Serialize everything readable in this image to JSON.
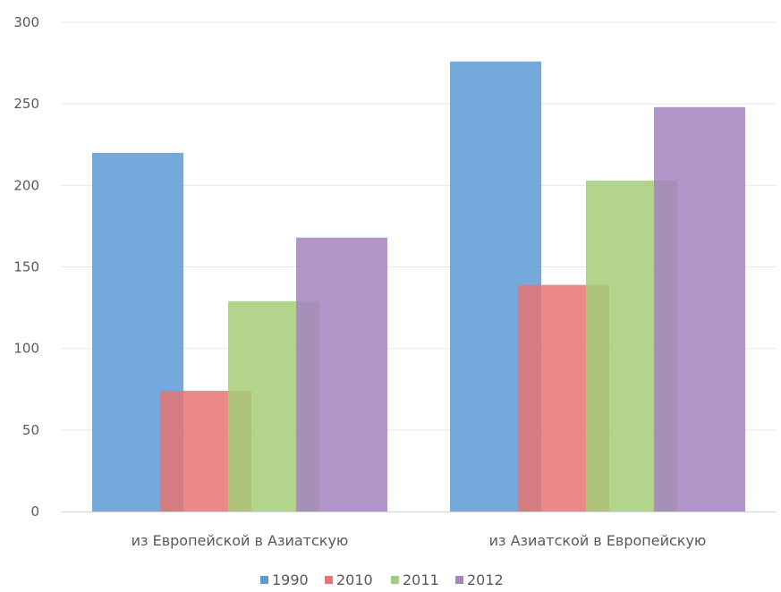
{
  "chart_data": {
    "type": "bar",
    "categories": [
      "из Европейской в Азиатскую",
      "из Азиатской в Европейскую"
    ],
    "series": [
      {
        "name": "1990",
        "values": [
          220,
          276
        ],
        "color": "#5B9BD5"
      },
      {
        "name": "2010",
        "values": [
          74,
          139
        ],
        "color": "#E87474"
      },
      {
        "name": "2011",
        "values": [
          129,
          203
        ],
        "color": "#A5CC77"
      },
      {
        "name": "2012",
        "values": [
          168,
          248
        ],
        "color": "#A584C0"
      }
    ],
    "ylim": [
      0,
      300
    ],
    "yticks": [
      0,
      50,
      100,
      150,
      200,
      250,
      300
    ],
    "grid": true,
    "legend": "bottom-center",
    "overlap": true
  }
}
